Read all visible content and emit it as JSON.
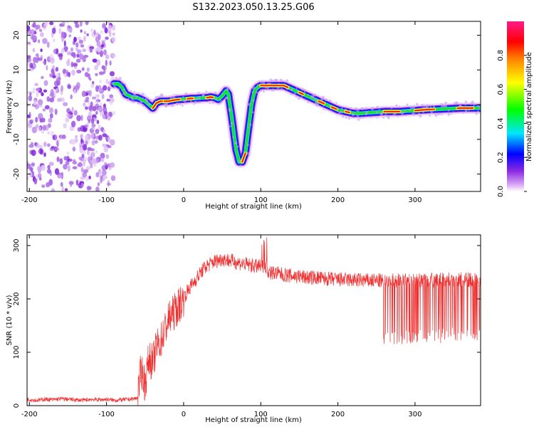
{
  "title": "S132.2023.050.13.25.G06",
  "chart_data": [
    {
      "type": "heatmap",
      "xlabel": "Height of straight line (km)",
      "ylabel": "Frequency (Hz)",
      "xlim": [
        -203,
        385
      ],
      "ylim": [
        -25,
        24
      ],
      "xticks": [
        -200,
        -100,
        0,
        100,
        200,
        300
      ],
      "yticks": [
        -20,
        -10,
        0,
        10,
        20
      ],
      "colorbar": {
        "label": "Normalized spectral amplitude",
        "range": [
          0,
          1
        ],
        "ticks": [
          "0.0",
          "0.2",
          "0.4",
          "0.6",
          "0.8"
        ],
        "colors": [
          "#ffffff",
          "#d9a6f5",
          "#8a2be2",
          "#0000ff",
          "#00e5ff",
          "#00ff00",
          "#ffff00",
          "#ff8000",
          "#ff0000",
          "#ff1a8c"
        ]
      },
      "noise_region_x": [
        -203,
        -90
      ],
      "ridge": {
        "x": [
          -90,
          -85,
          -80,
          -75,
          -70,
          -65,
          -60,
          -55,
          -50,
          -45,
          -40,
          -35,
          -30,
          -25,
          -20,
          -15,
          -10,
          -5,
          0,
          5,
          10,
          15,
          20,
          25,
          30,
          35,
          40,
          45,
          50,
          55,
          58,
          62,
          65,
          68,
          72,
          76,
          80,
          84,
          88,
          92,
          96,
          100,
          105,
          110,
          115,
          120,
          125,
          130,
          135,
          140,
          150,
          160,
          170,
          180,
          190,
          200,
          210,
          220,
          230,
          240,
          250,
          260,
          270,
          280,
          290,
          300,
          310,
          320,
          330,
          340,
          350,
          360,
          370,
          385
        ],
        "y": [
          6,
          6,
          5,
          3,
          2.5,
          2,
          2,
          1.5,
          1,
          0,
          -1,
          0.5,
          1,
          1,
          1,
          1.2,
          1.4,
          1.5,
          1.6,
          1.7,
          1.8,
          1.8,
          1.9,
          2,
          2,
          2.2,
          2,
          1.5,
          2.5,
          4,
          3,
          -3,
          -8,
          -13,
          -16.5,
          -16.5,
          -14,
          -7,
          0,
          4,
          5,
          5.5,
          5.5,
          5.5,
          5.5,
          5.5,
          5.5,
          5.5,
          5,
          4.5,
          3.5,
          2.5,
          1.5,
          0.5,
          -0.5,
          -1.5,
          -2,
          -2.5,
          -2.5,
          -2.3,
          -2.2,
          -2,
          -2,
          -2,
          -1.8,
          -1.7,
          -1.5,
          -1.4,
          -1.3,
          -1.2,
          -1.1,
          -1,
          -1,
          -1
        ]
      }
    },
    {
      "type": "line",
      "xlabel": "Height of straight line (km)",
      "ylabel": "SNR (10 * v/v)",
      "xlim": [
        -203,
        385
      ],
      "ylim": [
        0,
        320
      ],
      "xticks": [
        -200,
        -100,
        0,
        100,
        200,
        300
      ],
      "yticks": [
        0,
        100,
        200,
        300
      ],
      "series": [
        {
          "color": "#f03030",
          "x": [
            -203,
            -190,
            -180,
            -170,
            -160,
            -150,
            -140,
            -130,
            -120,
            -110,
            -100,
            -90,
            -80,
            -70,
            -60,
            -55,
            -50,
            -45,
            -40,
            -35,
            -30,
            -25,
            -20,
            -15,
            -10,
            -5,
            0,
            5,
            10,
            15,
            20,
            25,
            30,
            40,
            50,
            60,
            70,
            80,
            90,
            100,
            105,
            110,
            120,
            130,
            140,
            150,
            160,
            170,
            180,
            190,
            200,
            210,
            220,
            230,
            240,
            250,
            260,
            270,
            280,
            290,
            300,
            310,
            320,
            330,
            340,
            350,
            360,
            370,
            385
          ],
          "values": [
            12,
            10,
            12,
            11,
            13,
            12,
            11,
            10,
            12,
            11,
            12,
            10,
            11,
            12,
            14,
            70,
            40,
            90,
            80,
            110,
            120,
            140,
            160,
            170,
            180,
            190,
            200,
            215,
            225,
            235,
            245,
            255,
            262,
            270,
            275,
            272,
            268,
            265,
            262,
            260,
            265,
            250,
            248,
            245,
            243,
            242,
            240,
            240,
            238,
            237,
            236,
            236,
            235,
            235,
            234,
            234,
            234,
            234,
            235,
            235,
            235,
            235,
            235,
            236,
            236,
            236,
            236,
            236,
            236
          ]
        }
      ],
      "dips": {
        "x_range": [
          255,
          385
        ],
        "low": [
          115,
          145
        ]
      }
    }
  ]
}
